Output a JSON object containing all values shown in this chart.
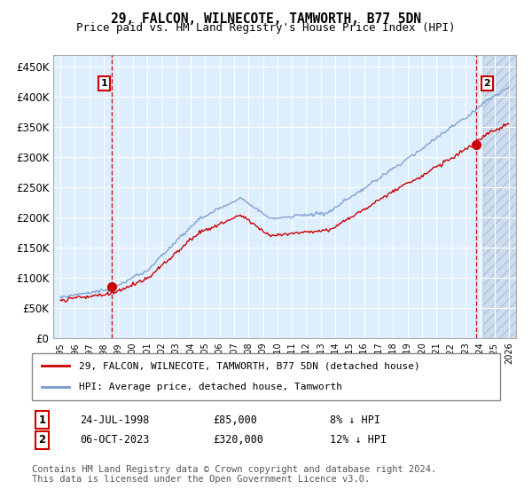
{
  "title": "29, FALCON, WILNECOTE, TAMWORTH, B77 5DN",
  "subtitle": "Price paid vs. HM Land Registry's House Price Index (HPI)",
  "ylabel_ticks": [
    "£0",
    "£50K",
    "£100K",
    "£150K",
    "£200K",
    "£250K",
    "£300K",
    "£350K",
    "£400K",
    "£450K"
  ],
  "ytick_values": [
    0,
    50000,
    100000,
    150000,
    200000,
    250000,
    300000,
    350000,
    400000,
    450000
  ],
  "ylim": [
    0,
    470000
  ],
  "xlim_start": 1994.5,
  "xlim_end": 2026.5,
  "background_color": "#ddeeff",
  "grid_color": "#ffffff",
  "hpi_color": "#7799cc",
  "price_color": "#cc0000",
  "marker1_date": 1998.56,
  "marker1_price": 85000,
  "marker2_date": 2023.77,
  "marker2_price": 320000,
  "legend_line1": "29, FALCON, WILNECOTE, TAMWORTH, B77 5DN (detached house)",
  "legend_line2": "HPI: Average price, detached house, Tamworth",
  "note1_label": "1",
  "note1_date": "24-JUL-1998",
  "note1_price": "£85,000",
  "note1_hpi": "8% ↓ HPI",
  "note2_label": "2",
  "note2_date": "06-OCT-2023",
  "note2_price": "£320,000",
  "note2_hpi": "12% ↓ HPI",
  "footer": "Contains HM Land Registry data © Crown copyright and database right 2024.\nThis data is licensed under the Open Government Licence v3.0."
}
